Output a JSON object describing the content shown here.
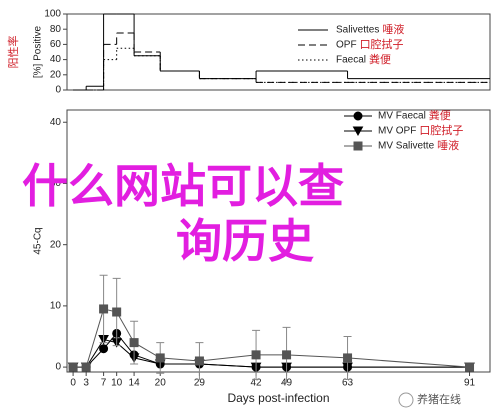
{
  "chart_data": [
    {
      "type": "line",
      "step": true,
      "y_label": "[%] Positive",
      "y_label_note": "阳性率",
      "x": [
        0,
        3,
        7,
        10,
        14,
        20,
        29,
        42,
        63,
        91
      ],
      "xlim": [
        -1.4,
        95.7
      ],
      "ylim": [
        0,
        100
      ],
      "yticks": [
        0,
        20,
        40,
        60,
        80,
        100
      ],
      "legend": "upper right",
      "series": [
        {
          "name": "Salivettes",
          "note": "唾液",
          "color": "#000000",
          "dash": "solid",
          "values": [
            0,
            5,
            100,
            100,
            45,
            25,
            15,
            25,
            15,
            15
          ]
        },
        {
          "name": "OPF",
          "note": "口腔拭子",
          "color": "#000000",
          "dash": "dashed",
          "values": [
            0,
            0,
            60,
            75,
            50,
            25,
            15,
            10,
            10,
            10
          ]
        },
        {
          "name": "Faecal",
          "note": "粪便",
          "color": "#000000",
          "dash": "dotted",
          "values": [
            0,
            0,
            40,
            55,
            45,
            25,
            15,
            10,
            10,
            10
          ]
        }
      ]
    },
    {
      "type": "line",
      "step": false,
      "y_label": "45-Cq",
      "x_label": "Days post-infection",
      "x": [
        0,
        3,
        7,
        10,
        14,
        20,
        29,
        42,
        49,
        63,
        91
      ],
      "xlim": [
        -1.4,
        95.7
      ],
      "xticks": [
        0,
        3,
        7,
        10,
        14,
        20,
        29,
        42,
        49,
        63,
        91
      ],
      "ylim": [
        -0.8,
        42
      ],
      "yticks": [
        0,
        10,
        20,
        30,
        40
      ],
      "legend": "upper right",
      "series": [
        {
          "name": "MV Faecal",
          "note": "粪便",
          "color": "#000000",
          "marker": "circle",
          "values": [
            0,
            0,
            3,
            5.5,
            2,
            0.5,
            0.5,
            0,
            0,
            0,
            0
          ]
        },
        {
          "name": "MV OPF",
          "note": "口腔拭子",
          "color": "#000000",
          "marker": "triangle",
          "values": [
            0,
            0,
            4.5,
            4,
            1.5,
            0.5,
            0.5,
            0,
            0,
            0,
            0
          ]
        },
        {
          "name": "MV Salivette",
          "note": "唾液",
          "color": "#555555",
          "marker": "square",
          "values": [
            0,
            0,
            9.5,
            9,
            4,
            1.5,
            1,
            2,
            2,
            1.5,
            0
          ],
          "errors": [
            0,
            0,
            5.5,
            5.5,
            3.5,
            2.5,
            3,
            4,
            4.5,
            3.5,
            0
          ]
        }
      ]
    }
  ],
  "overlay": {
    "lines": [
      "什么网站可以查",
      "询历史"
    ],
    "color": "#e21ee0"
  },
  "watermark": "养猪在线"
}
